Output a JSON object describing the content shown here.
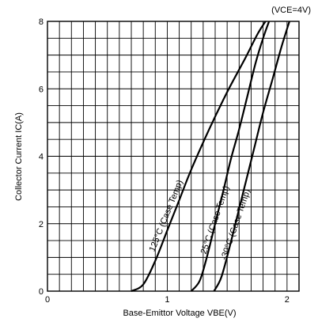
{
  "chart_data": {
    "type": "line",
    "condition": "(VCE=4V)",
    "xlabel": "Base-Emittor Voltage VBE(V)",
    "ylabel": "Collector Current IC(A)",
    "xlim": [
      0,
      2.1
    ],
    "ylim": [
      0,
      8
    ],
    "x_ticks": [
      0,
      1,
      2
    ],
    "y_ticks": [
      0,
      2,
      4,
      6,
      8
    ],
    "x_grid_step": 0.1,
    "y_grid_step": 0.5,
    "grid": true,
    "series": [
      {
        "name": "125°C (Case Temp)",
        "x": [
          0.7,
          0.8,
          0.9,
          1.0,
          1.1,
          1.2,
          1.35,
          1.5,
          1.65,
          1.75,
          1.82
        ],
        "y": [
          0.0,
          0.2,
          0.9,
          1.8,
          2.7,
          3.6,
          4.8,
          5.9,
          6.9,
          7.6,
          8.0
        ]
      },
      {
        "name": "25°C (Case Temp)",
        "x": [
          1.2,
          1.27,
          1.33,
          1.4,
          1.47,
          1.53,
          1.6,
          1.67,
          1.74,
          1.8,
          1.85
        ],
        "y": [
          0.0,
          0.3,
          1.0,
          2.0,
          3.0,
          3.9,
          4.8,
          5.8,
          6.8,
          7.5,
          8.0
        ]
      },
      {
        "name": "-30°C (Case Temp)",
        "x": [
          1.39,
          1.45,
          1.52,
          1.59,
          1.66,
          1.73,
          1.8,
          1.88,
          1.95,
          2.02
        ],
        "y": [
          0.0,
          0.4,
          1.3,
          2.3,
          3.3,
          4.3,
          5.3,
          6.3,
          7.2,
          8.0
        ]
      }
    ]
  }
}
